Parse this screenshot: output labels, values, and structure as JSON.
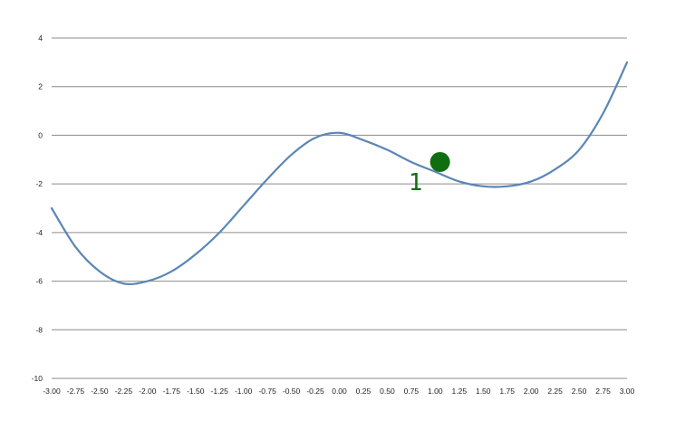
{
  "chart_data": {
    "type": "line",
    "title": "",
    "xlabel": "",
    "ylabel": "",
    "xlim": [
      -3.0,
      3.0
    ],
    "ylim": [
      -10,
      4
    ],
    "grid": true,
    "x_ticks": [
      "-3.00",
      "-2.75",
      "-2.50",
      "-2.25",
      "-2.00",
      "-1.75",
      "-1.50",
      "-1.25",
      "-1.00",
      "-0.75",
      "-0.50",
      "-0.25",
      "0.00",
      "0.25",
      "0.50",
      "0.75",
      "1.00",
      "1.25",
      "1.50",
      "1.75",
      "2.00",
      "2.25",
      "2.50",
      "2.75",
      "3.00"
    ],
    "y_ticks": [
      "-10",
      "-8",
      "-6",
      "-4",
      "-2",
      "0",
      "2",
      "4"
    ],
    "series": [
      {
        "color": "#5b86b5",
        "x": [
          -3.0,
          -2.75,
          -2.5,
          -2.25,
          -2.0,
          -1.75,
          -1.5,
          -1.25,
          -1.0,
          -0.75,
          -0.5,
          -0.25,
          0.0,
          0.25,
          0.5,
          0.75,
          1.0,
          1.25,
          1.5,
          1.75,
          2.0,
          2.25,
          2.5,
          2.75,
          3.0
        ],
        "values": [
          -3.0,
          -4.6,
          -5.6,
          -6.1,
          -6.0,
          -5.6,
          -4.9,
          -4.0,
          -2.9,
          -1.8,
          -0.8,
          -0.1,
          0.1,
          -0.2,
          -0.6,
          -1.1,
          -1.5,
          -1.9,
          -2.1,
          -2.1,
          -1.9,
          -1.4,
          -0.6,
          0.9,
          3.0
        ]
      }
    ],
    "highlight_point": {
      "x": 1.05,
      "y": -1.1,
      "label": "1",
      "color": "#0f6e0f"
    }
  }
}
